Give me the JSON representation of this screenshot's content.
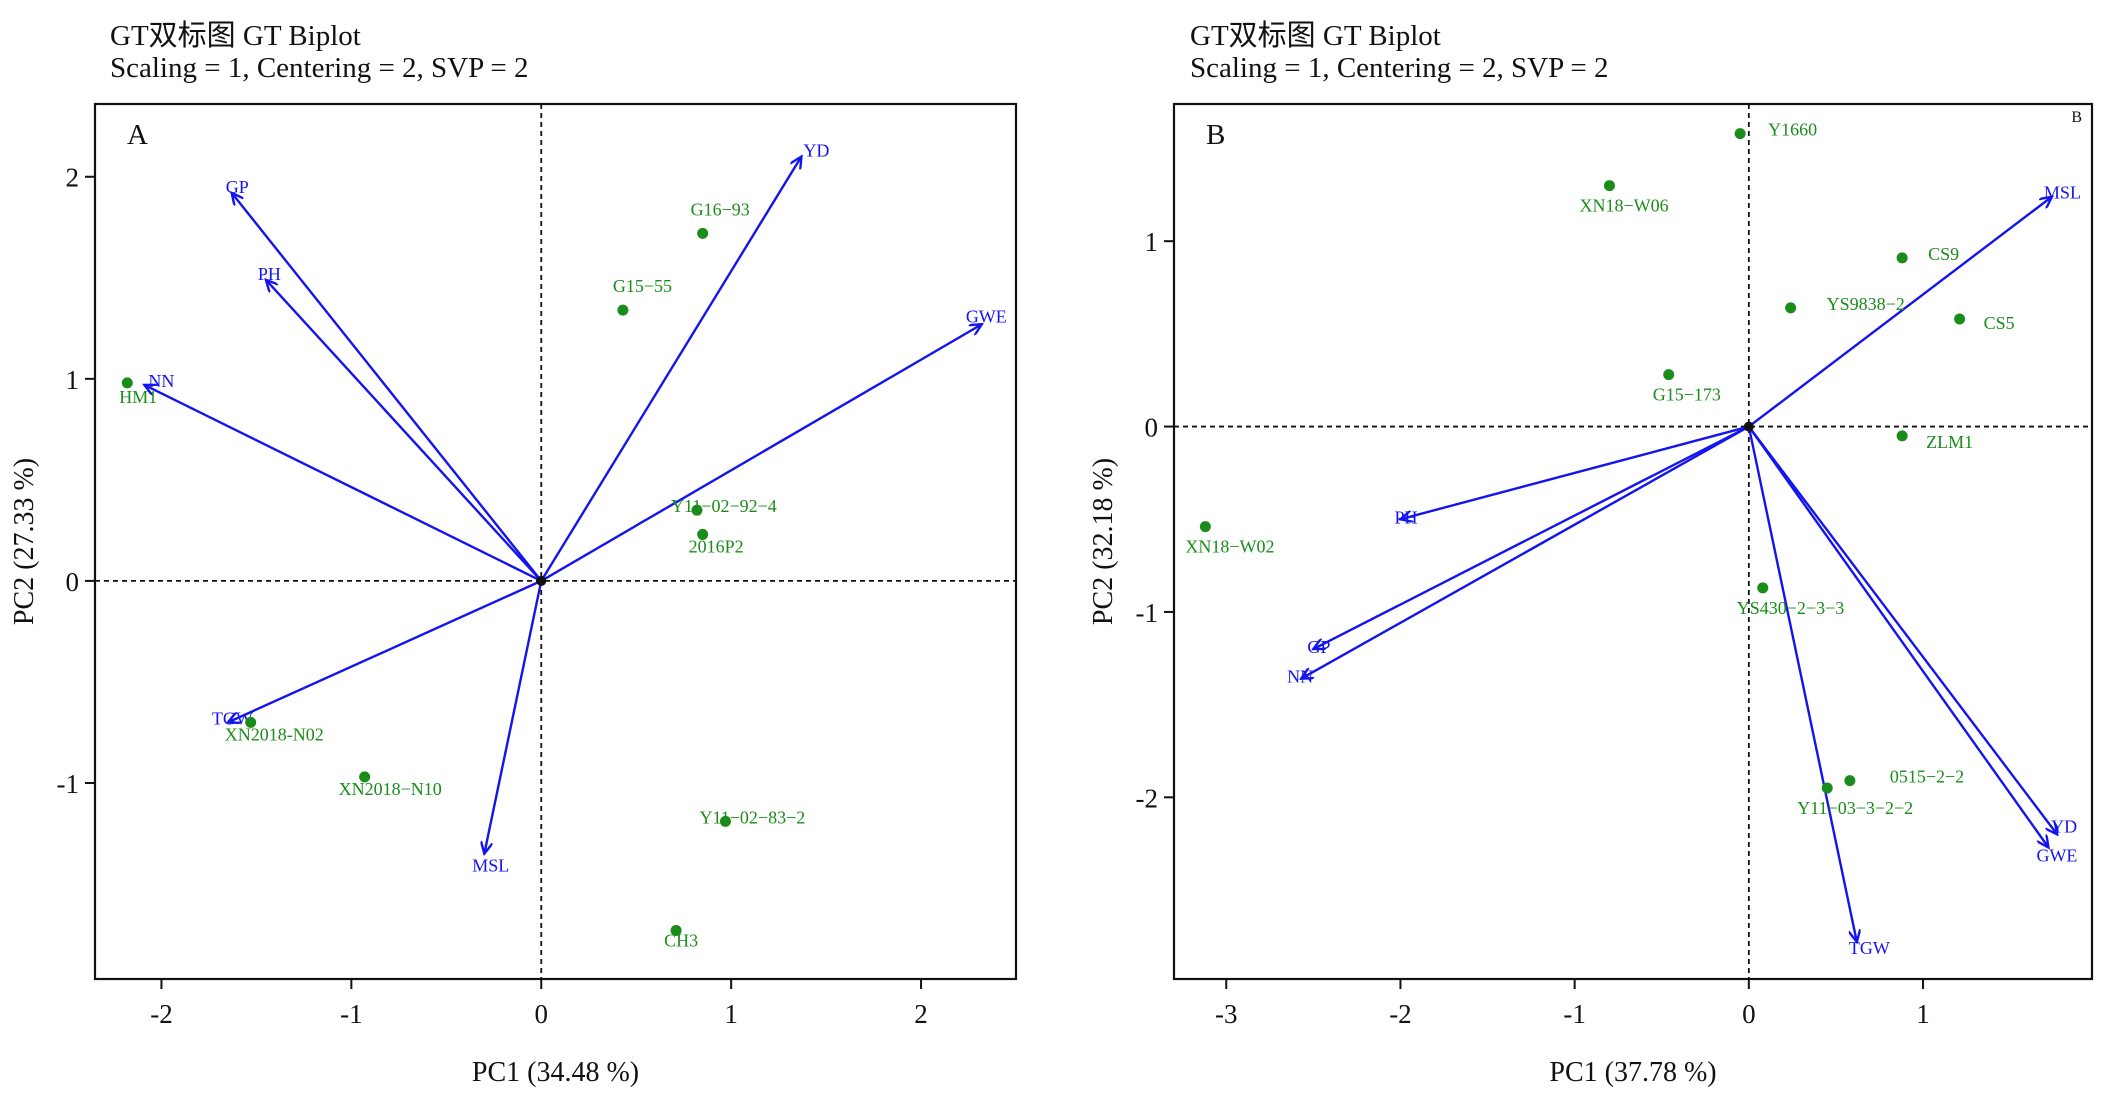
{
  "chart_data": [
    {
      "type": "scatter",
      "panel_label": "A",
      "title": "GT双标图 GT Biplot",
      "subtitle": "Scaling = 1, Centering = 2, SVP = 2",
      "xlabel": "PC1 (34.48 %)",
      "ylabel": "PC2 (27.33 %)",
      "xlim": [
        -2.35,
        2.5
      ],
      "ylim": [
        -1.97,
        2.36
      ],
      "xticks": [
        -2,
        -1,
        0,
        1,
        2
      ],
      "yticks": [
        -1,
        0,
        1,
        2
      ],
      "xtick_labels": [
        "-2",
        "-1",
        "0",
        "1",
        "2"
      ],
      "ytick_labels": [
        "-1",
        "0",
        "1",
        "2"
      ],
      "genotype_color": "#1a8c1a",
      "vector_color": "#1414ee",
      "genotypes": [
        {
          "label": "G16−93",
          "x": 0.85,
          "y": 1.72
        },
        {
          "label": "G15−55",
          "x": 0.43,
          "y": 1.34
        },
        {
          "label": "HM1",
          "x": -2.18,
          "y": 0.98
        },
        {
          "label": "Y11−02−92−4",
          "x": 0.82,
          "y": 0.35
        },
        {
          "label": "2016P2",
          "x": 0.85,
          "y": 0.23
        },
        {
          "label": "XN2018-N02",
          "x": -1.53,
          "y": -0.7
        },
        {
          "label": "XN2018−N10",
          "x": -0.93,
          "y": -0.97
        },
        {
          "label": "Y11−02−83−2",
          "x": 0.97,
          "y": -1.19
        },
        {
          "label": "CH3",
          "x": 0.71,
          "y": -1.73
        }
      ],
      "traits": [
        {
          "label": "YD",
          "x": 1.37,
          "y": 2.1
        },
        {
          "label": "GP",
          "x": -1.63,
          "y": 1.92
        },
        {
          "label": "PH",
          "x": -1.45,
          "y": 1.49
        },
        {
          "label": "NN",
          "x": -2.09,
          "y": 0.97
        },
        {
          "label": "GWE",
          "x": 2.32,
          "y": 1.27
        },
        {
          "label": "TGW",
          "x": -1.65,
          "y": -0.7
        },
        {
          "label": "MSL",
          "x": -0.3,
          "y": -1.35
        }
      ]
    },
    {
      "type": "scatter",
      "panel_label": "B",
      "corner_mark": "B",
      "title": "GT双标图 GT Biplot",
      "subtitle": "Scaling = 1, Centering = 2, SVP = 2",
      "xlabel": "PC1 (37.78 %)",
      "ylabel": "PC2 (32.18 %)",
      "xlim": [
        -3.3,
        1.97
      ],
      "ylim": [
        -2.98,
        1.74
      ],
      "xticks": [
        -3,
        -2,
        -1,
        0,
        1
      ],
      "yticks": [
        -2,
        -1,
        0,
        1
      ],
      "xtick_labels": [
        "-3",
        "-2",
        "-1",
        "0",
        "1"
      ],
      "ytick_labels": [
        "-2",
        "-1",
        "0",
        "1"
      ],
      "genotype_color": "#1a8c1a",
      "vector_color": "#1414ee",
      "genotypes": [
        {
          "label": "Y1660",
          "x": -0.05,
          "y": 1.58
        },
        {
          "label": "XN18−W06",
          "x": -0.8,
          "y": 1.3
        },
        {
          "label": "CS9",
          "x": 0.88,
          "y": 0.91
        },
        {
          "label": "YS9838−2",
          "x": 0.24,
          "y": 0.64
        },
        {
          "label": "CS5",
          "x": 1.21,
          "y": 0.58
        },
        {
          "label": "G15−173",
          "x": -0.46,
          "y": 0.28
        },
        {
          "label": "ZLM1",
          "x": 0.88,
          "y": -0.05
        },
        {
          "label": "XN18−W02",
          "x": -3.12,
          "y": -0.54
        },
        {
          "label": "YS430−2−3−3",
          "x": 0.08,
          "y": -0.87
        },
        {
          "label": "0515−2−2",
          "x": 0.58,
          "y": -1.91
        },
        {
          "label": "Y11−03−3−2−2",
          "x": 0.45,
          "y": -1.95
        }
      ],
      "traits": [
        {
          "label": "MSL",
          "x": 1.74,
          "y": 1.24
        },
        {
          "label": "PH",
          "x": -2.0,
          "y": -0.5
        },
        {
          "label": "GP",
          "x": -2.5,
          "y": -1.2
        },
        {
          "label": "NN",
          "x": -2.57,
          "y": -1.36
        },
        {
          "label": "YD",
          "x": 1.77,
          "y": -2.2
        },
        {
          "label": "GWE",
          "x": 1.72,
          "y": -2.27
        },
        {
          "label": "TGW",
          "x": 0.62,
          "y": -2.78
        }
      ]
    }
  ]
}
